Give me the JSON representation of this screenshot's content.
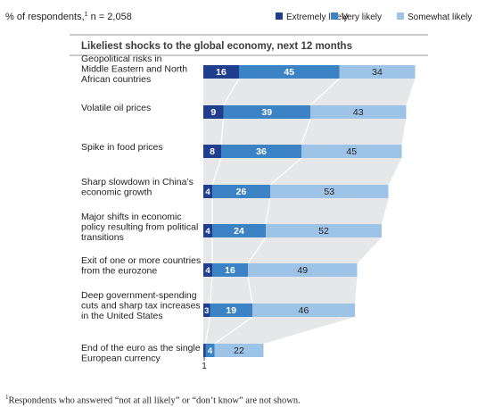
{
  "header": {
    "respondents_note": "% of respondents,",
    "respondents_sup": "1",
    "respondents_n": " n = 2,058"
  },
  "footnote": {
    "sup": "1",
    "text": "Respondents who answered “not at all likely” or “don’t know” are not shown."
  },
  "colors": {
    "extremely": "#1f3f8e",
    "very": "#3b83c4",
    "somewhat": "#9dc3e6",
    "connector": "#e6e7e9",
    "rule": "#9a9a9a"
  },
  "chart_data": {
    "type": "bar",
    "stacked": true,
    "orientation": "horizontal",
    "title": "Likeliest shocks to the global economy, next 12 months",
    "legend_position": "top-right",
    "categories": [
      "Geopolitical risks in Middle Eastern and North African countries",
      "Volatile oil prices",
      "Spike in food prices",
      "Sharp slowdown in China’s economic growth",
      "Major shifts in economic policy resulting from political transitions",
      "Exit of one or more countries from the eurozone",
      "Deep government-spending cuts and sharp tax increases in the United States",
      "End of the euro as the single European currency"
    ],
    "category_lines": [
      [
        "Geopolitical risks in",
        "Middle Eastern and North",
        "African countries"
      ],
      [
        "Volatile oil prices"
      ],
      [
        "Spike in food prices"
      ],
      [
        "Sharp slowdown in China’s",
        "economic growth"
      ],
      [
        "Major shifts in economic",
        "policy resulting from political",
        "transitions"
      ],
      [
        "Exit of one or more countries",
        "from the eurozone"
      ],
      [
        "Deep government-spending",
        "cuts and sharp tax increases",
        "in the United States"
      ],
      [
        "End of the euro as the single",
        "European currency"
      ]
    ],
    "series": [
      {
        "name": "Extremely likely",
        "values": [
          16,
          9,
          8,
          4,
          4,
          4,
          3,
          1
        ]
      },
      {
        "name": "Very likely",
        "values": [
          45,
          39,
          36,
          26,
          24,
          16,
          19,
          4
        ]
      },
      {
        "name": "Somewhat likely",
        "values": [
          34,
          43,
          45,
          53,
          52,
          49,
          46,
          22
        ]
      }
    ],
    "value_labels": [
      [
        "16",
        "45",
        "34"
      ],
      [
        "9",
        "39",
        "43"
      ],
      [
        "8",
        "36",
        "45"
      ],
      [
        "4",
        "26",
        "53"
      ],
      [
        "4",
        "24",
        "52"
      ],
      [
        "4",
        "16",
        "49"
      ],
      [
        "3",
        "19",
        "46"
      ],
      [
        "1",
        "4",
        "22"
      ]
    ],
    "xlim": [
      0,
      100
    ]
  }
}
